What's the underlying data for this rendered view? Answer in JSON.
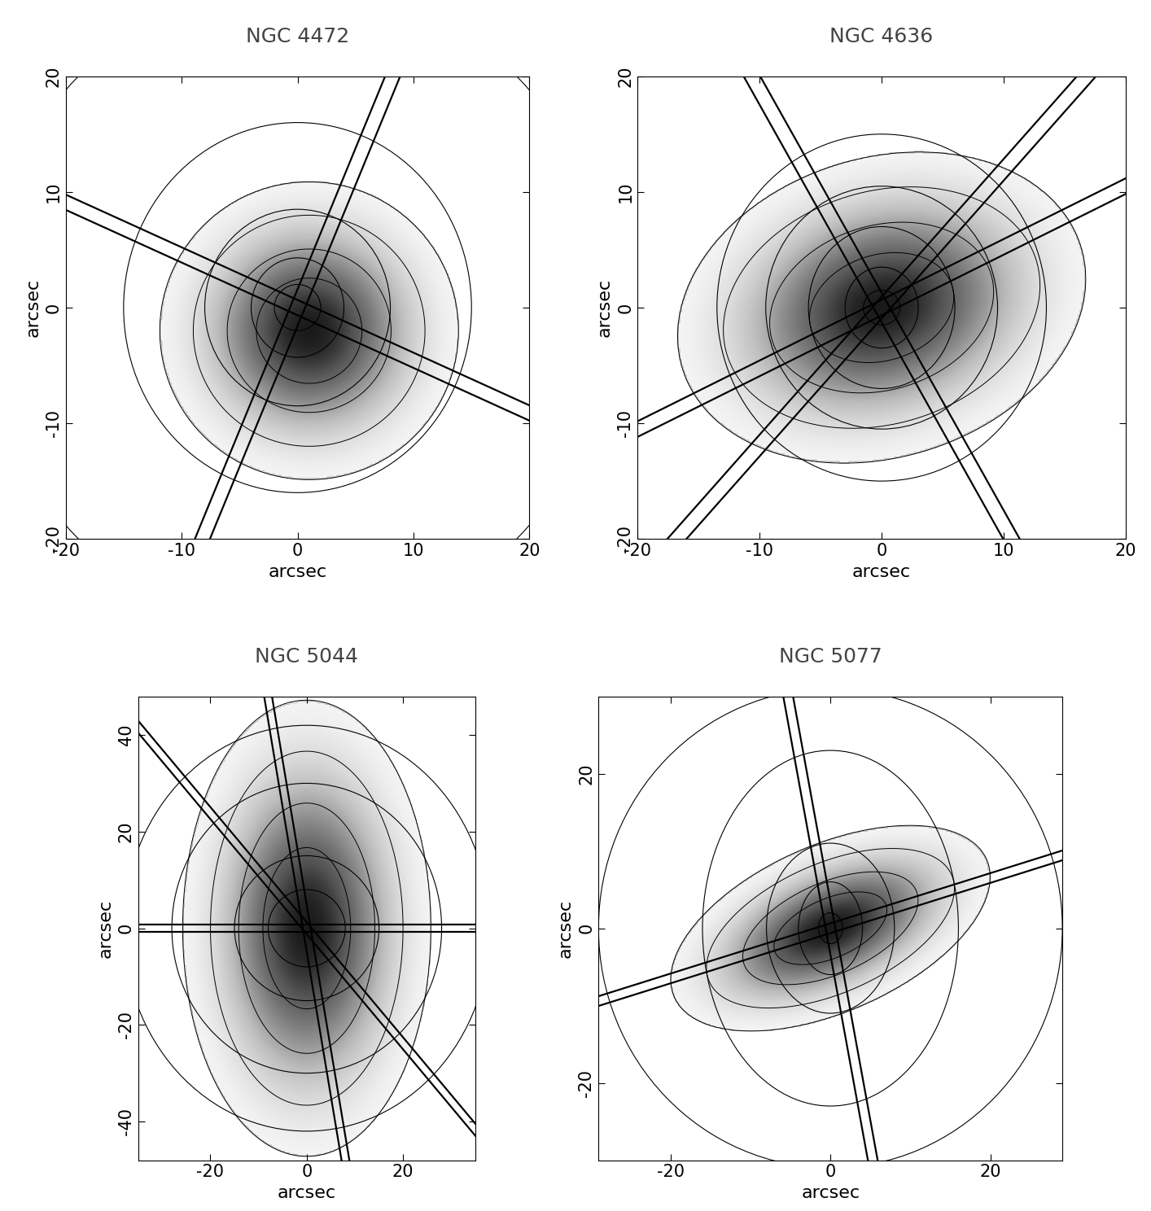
{
  "chart_data": [
    {
      "type": "image",
      "title": "NGC 4472",
      "x_label": "arcsec",
      "y_label": "arcsec",
      "xlim": [
        -20,
        20
      ],
      "ylim": [
        -20,
        20
      ],
      "xticks": [
        -20,
        -10,
        0,
        10,
        20
      ],
      "yticks": [
        -20,
        -10,
        0,
        10,
        20
      ],
      "isophotes": [
        {
          "a": 2,
          "b": 2,
          "angle": 0
        },
        {
          "a": 4,
          "b": 4.3,
          "angle": 0
        },
        {
          "a": 8,
          "b": 8.5,
          "angle": 0
        },
        {
          "a": 15,
          "b": 16,
          "angle": 0
        },
        {
          "a": 27,
          "b": 28,
          "angle": 0
        }
      ],
      "emission": {
        "center": [
          1,
          -2
        ],
        "sigma": [
          6,
          6
        ],
        "angle": 0
      },
      "slits": {
        "angles": [
          -24.5,
          67.7
        ],
        "width": 1.2
      }
    },
    {
      "type": "image",
      "title": "NGC 4636",
      "x_label": "arcsec",
      "y_label": "arcsec",
      "xlim": [
        -20,
        20
      ],
      "ylim": [
        -20,
        20
      ],
      "xticks": [
        -20,
        -10,
        0,
        10,
        20
      ],
      "yticks": [
        -20,
        -10,
        0,
        10,
        20
      ],
      "isophotes": [
        {
          "a": 1.5,
          "b": 1.5,
          "angle": 0
        },
        {
          "a": 3,
          "b": 3.5,
          "angle": 0
        },
        {
          "a": 6,
          "b": 7,
          "angle": 0
        },
        {
          "a": 9.5,
          "b": 10.5,
          "angle": 0
        },
        {
          "a": 13.5,
          "b": 15,
          "angle": 0
        }
      ],
      "emission": {
        "center": [
          0,
          0
        ],
        "sigma": [
          8,
          6
        ],
        "angle": 20
      },
      "slits": {
        "angles": [
          27.7,
          50,
          118
        ],
        "width": 1.2
      }
    },
    {
      "type": "image",
      "title": "NGC 5044",
      "x_label": "arcsec",
      "y_label": "arcsec",
      "xlim": [
        -35,
        35
      ],
      "ylim": [
        -48,
        48
      ],
      "xticks": [
        -20,
        0,
        20
      ],
      "yticks": [
        -40,
        -20,
        0,
        20,
        40
      ],
      "isophotes": [
        {
          "a": 8,
          "b": 8,
          "angle": 0
        },
        {
          "a": 15,
          "b": 15,
          "angle": 0
        },
        {
          "a": 28,
          "b": 30,
          "angle": 0
        },
        {
          "a": 38,
          "b": 42,
          "angle": 0
        }
      ],
      "emission": {
        "center": [
          0,
          0
        ],
        "sigma": [
          12,
          22
        ],
        "angle": 0
      },
      "slits": {
        "angles": [
          0,
          -50,
          99.5
        ],
        "width": 1.6
      }
    },
    {
      "type": "image",
      "title": "NGC 5077",
      "x_label": "arcsec",
      "y_label": "arcsec",
      "xlim": [
        -29,
        29
      ],
      "ylim": [
        -30,
        30
      ],
      "xticks": [
        -20,
        0,
        20
      ],
      "yticks": [
        -20,
        0,
        20
      ],
      "isophotes": [
        {
          "a": 1.5,
          "b": 2,
          "angle": 0
        },
        {
          "a": 4,
          "b": 6,
          "angle": 0
        },
        {
          "a": 8,
          "b": 11,
          "angle": 0
        },
        {
          "a": 16,
          "b": 23,
          "angle": 0
        },
        {
          "a": 29,
          "b": 31,
          "angle": 0
        }
      ],
      "emission": {
        "center": [
          0,
          0
        ],
        "sigma": [
          10,
          5
        ],
        "angle": 25
      },
      "slits": {
        "angles": [
          18,
          100
        ],
        "width": 1.2
      }
    }
  ]
}
